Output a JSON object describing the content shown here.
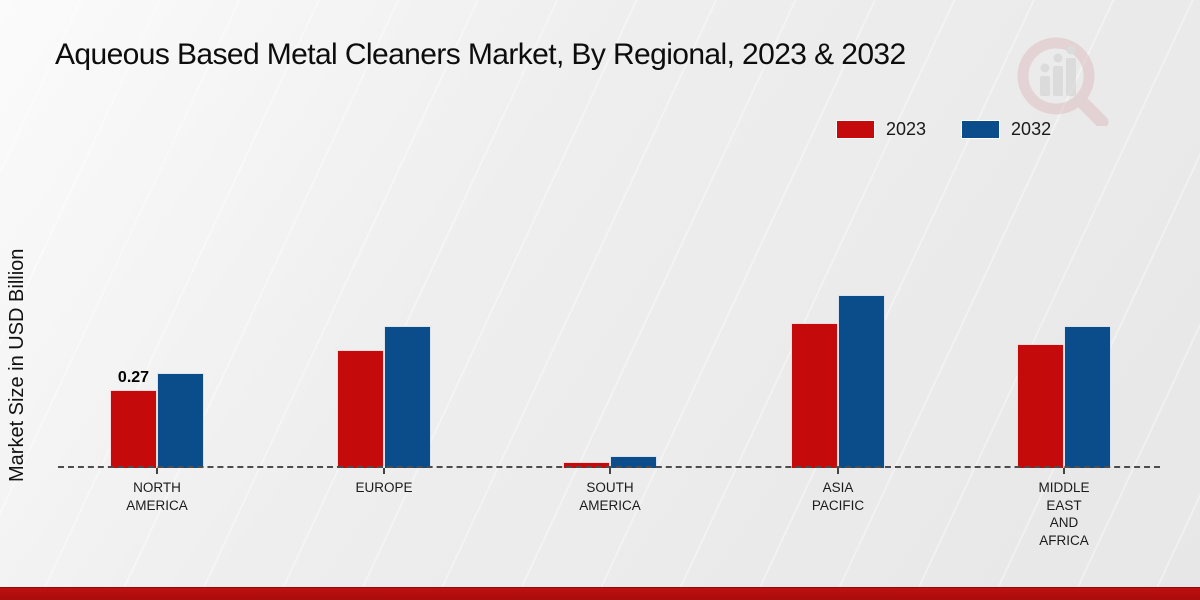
{
  "title": "Aqueous Based Metal Cleaners Market, By Regional, 2023 & 2032",
  "colors": {
    "series_2023": "#c40a0a",
    "series_2032": "#0b4d8a",
    "footer_bar": "#b50b0b",
    "background": "#ebebeb",
    "baseline": "#4d4d4d"
  },
  "legend": {
    "position": "top-right",
    "items": [
      {
        "label": "2023",
        "color": "#c40a0a"
      },
      {
        "label": "2032",
        "color": "#0b4d8a"
      }
    ]
  },
  "watermark": {
    "name": "magnifier-bar-chart-logo"
  },
  "chart_data": {
    "type": "bar",
    "title": "Aqueous Based Metal Cleaners Market, By Regional, 2023 & 2032",
    "xlabel": "",
    "ylabel": "Market Size in USD Billion",
    "ylim": [
      0,
      0.65
    ],
    "grid": false,
    "legend_position": "top-right",
    "baseline_style": "dashed",
    "categories": [
      "NORTH\nAMERICA",
      "EUROPE",
      "SOUTH\nAMERICA",
      "ASIA\nPACIFIC",
      "MIDDLE\nEAST\nAND\nAFRICA"
    ],
    "series": [
      {
        "name": "2023",
        "color": "#c40a0a",
        "values": [
          0.27,
          0.41,
          0.02,
          0.5,
          0.43
        ],
        "value_labels": [
          "0.27",
          null,
          null,
          null,
          null
        ]
      },
      {
        "name": "2032",
        "color": "#0b4d8a",
        "values": [
          0.33,
          0.49,
          0.04,
          0.6,
          0.49
        ],
        "value_labels": [
          null,
          null,
          null,
          null,
          null
        ]
      }
    ]
  }
}
